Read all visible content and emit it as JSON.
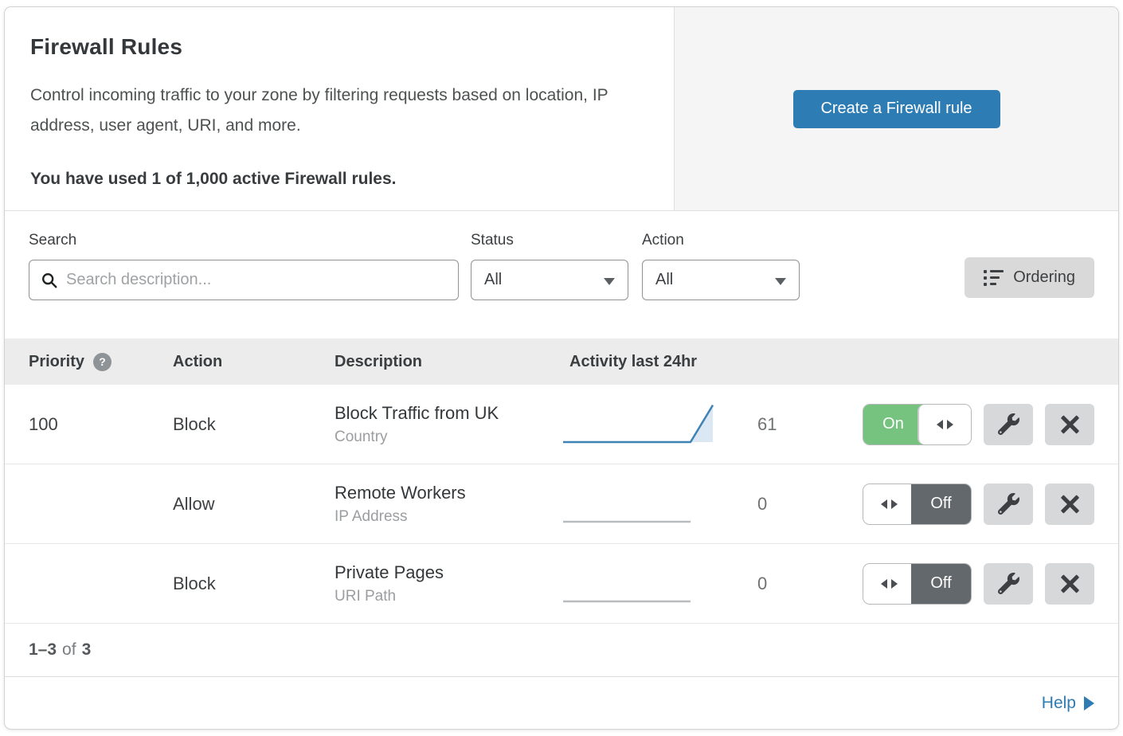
{
  "header": {
    "title": "Firewall Rules",
    "description": "Control incoming traffic to your zone by filtering requests based on location, IP address, user agent, URI, and more.",
    "usage_note": "You have used 1 of 1,000 active Firewall rules.",
    "create_button_label": "Create a Firewall rule"
  },
  "filters": {
    "search_label": "Search",
    "search_placeholder": "Search description...",
    "search_value": "",
    "status_label": "Status",
    "status_value": "All",
    "action_label": "Action",
    "action_value": "All",
    "ordering_button_label": "Ordering"
  },
  "table": {
    "columns": {
      "priority": "Priority",
      "action": "Action",
      "description": "Description",
      "activity": "Activity last 24hr"
    },
    "priority_help_glyph": "?",
    "rows": [
      {
        "priority": "100",
        "action": "Block",
        "description": "Block Traffic from UK",
        "match_type": "Country",
        "activity_count": "61",
        "toggle_state": "On",
        "spark": {
          "color": "#3e82b6",
          "points": [
            [
              0,
              88
            ],
            [
              80,
              88
            ],
            [
              94,
              8
            ]
          ],
          "fill": "#dbe8f3",
          "fill_points": [
            [
              80,
              88
            ],
            [
              94,
              8
            ],
            [
              94,
              88
            ]
          ]
        }
      },
      {
        "priority": "",
        "action": "Allow",
        "description": "Remote Workers",
        "match_type": "IP Address",
        "activity_count": "0",
        "toggle_state": "Off",
        "spark": {
          "color": "#b9bcbf",
          "points": [
            [
              0,
              88
            ],
            [
              80,
              88
            ]
          ]
        }
      },
      {
        "priority": "",
        "action": "Block",
        "description": "Private Pages",
        "match_type": "URI Path",
        "activity_count": "0",
        "toggle_state": "Off",
        "spark": {
          "color": "#b9bcbf",
          "points": [
            [
              0,
              88
            ],
            [
              80,
              88
            ]
          ]
        }
      }
    ]
  },
  "footer": {
    "pagination_range": "1–3",
    "pagination_of": "of",
    "pagination_total": "3",
    "help_label": "Help"
  },
  "colors": {
    "accent_blue": "#2e7cb4",
    "toggle_on_green": "#76c37f",
    "toggle_off_gray": "#62686c",
    "spark_blue": "#3e82b6",
    "spark_fill": "#dbe8f3",
    "spark_gray": "#b9bcbf",
    "panel_gray": "#f5f5f5",
    "table_header_gray": "#ececec"
  }
}
